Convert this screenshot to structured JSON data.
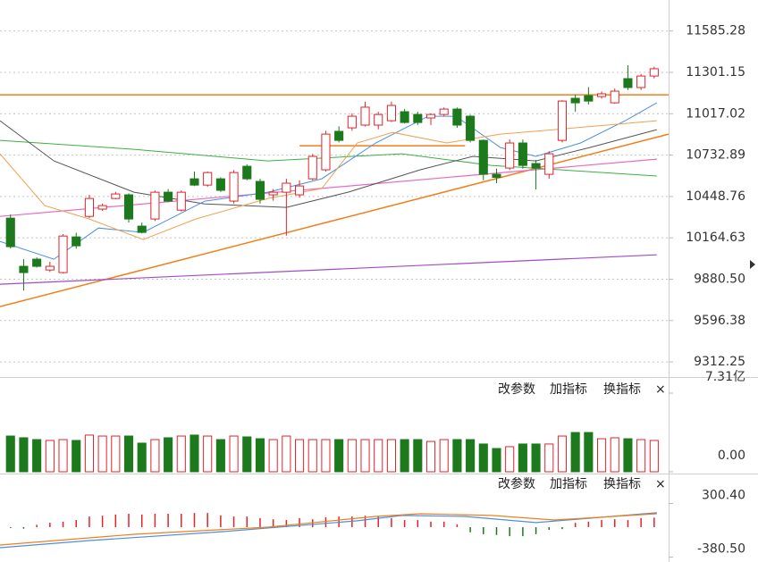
{
  "chart_data": [
    {
      "type": "candlestick",
      "xlim": [
        -0.8,
        50.1
      ],
      "ylim": [
        9208.4,
        11798.2
      ],
      "yticks": [
        11585.28,
        11301.15,
        11017.02,
        10732.89,
        10448.76,
        10164.63,
        {
          "value": 9880.5,
          "label": "9880.50"
        },
        9596.38,
        9312.25
      ],
      "grid": true,
      "up_color": "#e0242b",
      "down_color": "#1c7a1c",
      "candles": [
        [
          10300,
          10325,
          10092,
          10104
        ],
        [
          9969,
          10018,
          9803,
          9926
        ],
        [
          10018,
          10030,
          9960,
          9969
        ],
        [
          9944,
          10000,
          9930,
          9969
        ],
        [
          9926,
          10190,
          9920,
          10177
        ],
        [
          10171,
          10200,
          10090,
          10110
        ],
        [
          10312,
          10460,
          10300,
          10435
        ],
        [
          10362,
          10400,
          10350,
          10386
        ],
        [
          10435,
          10480,
          10430,
          10466
        ],
        [
          10460,
          10470,
          10270,
          10294
        ],
        [
          10245,
          10270,
          10195,
          10202
        ],
        [
          10294,
          10490,
          10280,
          10478
        ],
        [
          10478,
          10500,
          10410,
          10417
        ],
        [
          10355,
          10490,
          10345,
          10478
        ],
        [
          10570,
          10620,
          10520,
          10527
        ],
        [
          10527,
          10620,
          10515,
          10613
        ],
        [
          10570,
          10580,
          10480,
          10491
        ],
        [
          10417,
          10630,
          10400,
          10613
        ],
        [
          10656,
          10670,
          10560,
          10570
        ],
        [
          10552,
          10570,
          10400,
          10429
        ],
        [
          10460,
          10500,
          10420,
          10478
        ],
        [
          10478,
          10570,
          10180,
          10540
        ],
        [
          10460,
          10560,
          10440,
          10521
        ],
        [
          10570,
          10740,
          10560,
          10724
        ],
        [
          10632,
          10900,
          10620,
          10877
        ],
        [
          10896,
          10930,
          10820,
          10834
        ],
        [
          10920,
          11020,
          10900,
          11000
        ],
        [
          10939,
          11100,
          10930,
          11062
        ],
        [
          10939,
          11030,
          10910,
          11012
        ],
        [
          10969,
          11100,
          10960,
          11074
        ],
        [
          11031,
          11050,
          10950,
          10957
        ],
        [
          11012,
          11030,
          10940,
          10957
        ],
        [
          10988,
          11020,
          10940,
          11012
        ],
        [
          11012,
          11060,
          11000,
          11049
        ],
        [
          11049,
          11060,
          10920,
          10939
        ],
        [
          11000,
          11010,
          10820,
          10834
        ],
        [
          10834,
          10840,
          10560,
          10601
        ],
        [
          10601,
          10640,
          10540,
          10580
        ],
        [
          10644,
          10840,
          10630,
          10816
        ],
        [
          10816,
          10840,
          10640,
          10662
        ],
        [
          10675,
          10700,
          10497,
          10644
        ],
        [
          10601,
          10760,
          10570,
          10742
        ],
        [
          10834,
          11110,
          10820,
          11104
        ],
        [
          11123,
          11150,
          11030,
          11092
        ],
        [
          11141,
          11200,
          11080,
          11104
        ],
        [
          11135,
          11170,
          11120,
          11154
        ],
        [
          11092,
          11190,
          11085,
          11172
        ],
        [
          11258,
          11350,
          11180,
          11197
        ],
        [
          11197,
          11290,
          11180,
          11276
        ],
        [
          11276,
          11340,
          11260,
          11326
        ]
      ],
      "series": [
        {
          "color": "#f07f1a",
          "width": 1.5,
          "x": [
            -0.8,
            50.1
          ],
          "values": [
            11147,
            11147
          ]
        },
        {
          "color": "#f07f1a",
          "width": 1.5,
          "x": [
            22,
            34.6
          ],
          "values": [
            10797,
            10797
          ]
        },
        {
          "color": "#f07f1a",
          "width": 1.5,
          "x": [
            -0.8,
            50.1
          ],
          "values": [
            9692,
            10877
          ]
        },
        {
          "color": "#e86bc0",
          "width": 1.2,
          "x": [
            -0.8,
            49.2
          ],
          "values": [
            10312,
            10705
          ]
        },
        {
          "color": "#a24bc9",
          "width": 1.2,
          "x": [
            -0.8,
            49.2
          ],
          "values": [
            9846,
            10048
          ]
        },
        {
          "color": "#3cb043",
          "width": 1,
          "x": [
            -0.8,
            9.4,
            19.6,
            29.8,
            36.6,
            49.2
          ],
          "values": [
            10834,
            10773,
            10693,
            10742,
            10662,
            10589
          ]
        },
        {
          "color": "#555555",
          "width": 1,
          "x": [
            -0.8,
            3.3,
            9.4,
            14.8,
            21,
            25.7,
            31.2,
            35.2,
            40,
            44.1,
            49.2
          ],
          "values": [
            10969,
            10693,
            10478,
            10398,
            10374,
            10478,
            10632,
            10724,
            10693,
            10785,
            10908
          ]
        },
        {
          "color": "#4a8fe0",
          "width": 1,
          "x": [
            -0.8,
            3.3,
            6.7,
            10.1,
            14.8,
            19.6,
            23.7,
            27.8,
            31.8,
            33.9,
            37.3,
            40,
            43.4,
            46.8,
            49.2
          ],
          "values": [
            10140,
            10018,
            10232,
            10202,
            10417,
            10478,
            10570,
            10816,
            11000,
            11000,
            10785,
            10724,
            10816,
            10969,
            11092
          ]
        },
        {
          "color": "#f0a050",
          "width": 1,
          "x": [
            -0.8,
            2.6,
            6,
            10.1,
            14.1,
            19.6,
            23.7,
            26.4,
            29.1,
            33.2,
            37.3,
            41.4,
            45.4,
            49.2
          ],
          "values": [
            10742,
            10386,
            10294,
            10153,
            10294,
            10435,
            10503,
            10816,
            10889,
            10816,
            10877,
            10908,
            10939,
            10969
          ]
        }
      ]
    },
    {
      "type": "bar",
      "xlim": [
        -0.8,
        50.1
      ],
      "ylim": [
        0,
        7.31
      ],
      "yticks": [
        {
          "value": 7.31,
          "label": "7.31亿"
        },
        {
          "value": 0,
          "label": "0.00"
        }
      ],
      "menu": [
        "改参数",
        "加指标",
        "换指标",
        "×"
      ],
      "values": [
        3.32,
        3.16,
        2.99,
        2.91,
        2.99,
        2.91,
        3.41,
        3.32,
        3.32,
        3.32,
        2.66,
        2.99,
        3.16,
        3.32,
        3.41,
        3.32,
        2.99,
        3.32,
        3.24,
        3.07,
        2.99,
        3.32,
        2.99,
        2.99,
        2.99,
        2.99,
        2.99,
        2.99,
        2.99,
        2.99,
        2.99,
        2.99,
        2.82,
        2.99,
        2.99,
        2.99,
        2.58,
        2.16,
        2.33,
        2.58,
        2.58,
        2.58,
        3.32,
        3.65,
        3.65,
        3.07,
        3.16,
        3.07,
        2.99,
        2.91
      ]
    },
    {
      "type": "macd",
      "xlim": [
        -0.8,
        50.1
      ],
      "ylim": [
        -380.5,
        300.4
      ],
      "yticks": [
        {
          "value": 300.4,
          "label": "300.40"
        },
        {
          "value": -380.5,
          "label": "-380.50"
        }
      ],
      "menu": [
        "改参数",
        "加指标",
        "换指标",
        "×"
      ],
      "up_color": "#e0242b",
      "down_color": "#1c7a1c",
      "values": [
        -10,
        -20,
        30,
        55,
        70,
        90,
        135,
        145,
        160,
        170,
        160,
        170,
        170,
        170,
        180,
        180,
        150,
        135,
        135,
        115,
        100,
        90,
        115,
        100,
        125,
        135,
        135,
        145,
        135,
        115,
        90,
        90,
        70,
        70,
        35,
        -65,
        -90,
        -100,
        -115,
        -115,
        -90,
        -35,
        -25,
        55,
        70,
        90,
        100,
        90,
        115,
        120
      ],
      "series": [
        {
          "color": "#4a8fe0",
          "x": [
            -0.8,
            6,
            16.2,
            26.4,
            29.8,
            34.6,
            40,
            49.2
          ],
          "values": [
            -261,
            -170,
            -57,
            80,
            148,
            136,
            57,
            182
          ]
        },
        {
          "color": "#f07f1a",
          "x": [
            -0.8,
            9.4,
            19.6,
            27.8,
            31.2,
            36.6,
            41.4,
            49.2
          ],
          "values": [
            -227,
            -91,
            0,
            136,
            170,
            148,
            91,
            170
          ]
        }
      ]
    }
  ]
}
